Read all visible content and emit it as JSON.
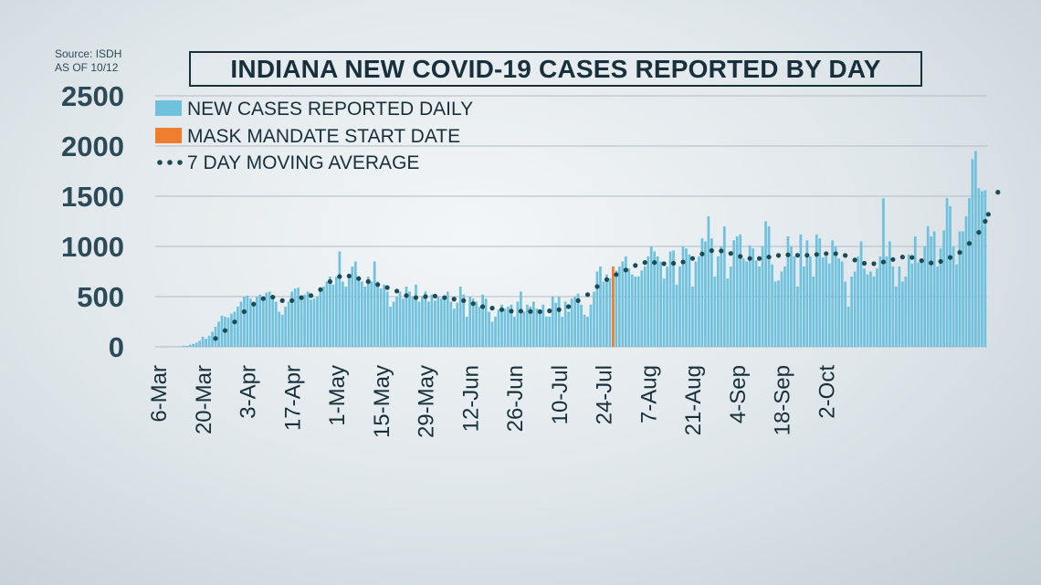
{
  "source_text": [
    "Source: ISDH",
    "AS OF 10/12"
  ],
  "colors": {
    "bars": "#6fc1dd",
    "mask_bar": "#f07d2e",
    "moving_avg": "#1c4a55",
    "grid": "#b0bcc3",
    "text": "#17303b"
  },
  "chart_data": {
    "type": "bar",
    "title": "INDIANA NEW COVID-19 CASES REPORTED BY DAY",
    "xlabel": "",
    "ylabel": "",
    "ylim": [
      0,
      2500
    ],
    "yticks": [
      0,
      500,
      1000,
      1500,
      2000,
      2500
    ],
    "grid": true,
    "legend_position": "top-left",
    "legend": [
      {
        "label": "NEW CASES REPORTED DAILY",
        "type": "bar",
        "color": "#6fc1dd"
      },
      {
        "label": "MASK MANDATE START DATE",
        "type": "bar",
        "color": "#f07d2e"
      },
      {
        "label": "7 DAY MOVING AVERAGE",
        "type": "dots",
        "color": "#1c4a55"
      }
    ],
    "x_start_date": "2020-03-06",
    "x_tick_labels": [
      "6-Mar",
      "20-Mar",
      "3-Apr",
      "17-Apr",
      "1-May",
      "15-May",
      "29-May",
      "12-Jun",
      "26-Jun",
      "10-Jul",
      "24-Jul",
      "7-Aug",
      "21-Aug",
      "4-Sep",
      "18-Sep",
      "2-Oct"
    ],
    "mask_mandate_date": "2020-07-27",
    "mask_mandate_value": 800,
    "series": [
      {
        "name": "NEW CASES REPORTED DAILY",
        "values": [
          0,
          0,
          1,
          4,
          2,
          3,
          2,
          5,
          10,
          10,
          20,
          30,
          40,
          60,
          100,
          80,
          110,
          150,
          200,
          250,
          310,
          300,
          290,
          330,
          350,
          400,
          450,
          500,
          510,
          480,
          450,
          500,
          520,
          480,
          540,
          550,
          500,
          450,
          350,
          320,
          400,
          450,
          550,
          580,
          590,
          500,
          520,
          550,
          470,
          480,
          500,
          550,
          600,
          650,
          700,
          620,
          700,
          950,
          650,
          600,
          700,
          800,
          850,
          700,
          650,
          600,
          700,
          650,
          850,
          650,
          580,
          620,
          550,
          400,
          450,
          500,
          550,
          480,
          600,
          550,
          500,
          620,
          450,
          500,
          550,
          450,
          520,
          460,
          500,
          480,
          500,
          550,
          450,
          380,
          440,
          600,
          520,
          300,
          500,
          480,
          450,
          400,
          520,
          480,
          350,
          250,
          300,
          370,
          420,
          380,
          400,
          420,
          300,
          450,
          550,
          350,
          420,
          400,
          450,
          380,
          350,
          420,
          300,
          300,
          500,
          440,
          500,
          300,
          450,
          350,
          480,
          500,
          530,
          420,
          320,
          300,
          420,
          550,
          750,
          800,
          650,
          720,
          680,
          700,
          760,
          800,
          850,
          900,
          780,
          720,
          700,
          700,
          760,
          800,
          900,
          1000,
          950,
          900,
          850,
          680,
          800,
          950,
          960,
          620,
          800,
          1000,
          980,
          920,
          600,
          850,
          900,
          1080,
          1050,
          1300,
          1080,
          700,
          900,
          1000,
          1200,
          680,
          800,
          1060,
          1100,
          1120,
          880,
          850,
          1010,
          980,
          860,
          800,
          1000,
          1250,
          1200,
          820,
          650,
          660,
          750,
          800,
          1100,
          1000,
          900,
          600,
          1120,
          800,
          1060,
          900,
          700,
          1120,
          1080,
          890,
          900,
          830,
          1060,
          1000,
          880,
          850,
          650,
          400,
          700,
          750,
          900,
          1050,
          780,
          720,
          750,
          700,
          780,
          900,
          1480,
          900,
          1050,
          800,
          600,
          800,
          650,
          700,
          920,
          830,
          1100,
          840,
          850,
          1000,
          1200,
          1100,
          1150,
          800,
          980,
          1160,
          1480,
          1400,
          1000,
          820,
          1150,
          1150,
          1300,
          1480,
          1870,
          1950,
          1580,
          1550,
          1560
        ]
      },
      {
        "name": "7 DAY MOVING AVERAGE",
        "values": [
          0,
          0,
          1,
          2,
          2,
          2,
          2,
          3,
          4,
          5,
          8,
          11,
          15,
          22,
          33,
          40,
          52,
          64,
          83,
          104,
          130,
          162,
          196,
          223,
          248,
          280,
          315,
          350,
          380,
          405,
          425,
          445,
          465,
          480,
          490,
          500,
          495,
          485,
          470,
          460,
          455,
          455,
          460,
          470,
          480,
          490,
          495,
          500,
          510,
          520,
          540,
          570,
          600,
          630,
          650,
          660,
          680,
          700,
          710,
          710,
          705,
          700,
          690,
          680,
          670,
          660,
          650,
          640,
          630,
          620,
          610,
          600,
          590,
          580,
          570,
          555,
          540,
          525,
          510,
          500,
          495,
          490,
          490,
          495,
          500,
          505,
          510,
          505,
          500,
          495,
          490,
          485,
          480,
          475,
          470,
          465,
          460,
          450,
          440,
          430,
          420,
          410,
          400,
          395,
          390,
          385,
          380,
          375,
          370,
          365,
          360,
          355,
          355,
          355,
          355,
          355,
          355,
          352,
          350,
          350,
          350,
          352,
          355,
          358,
          360,
          365,
          370,
          380,
          390,
          400,
          420,
          440,
          460,
          480,
          500,
          520,
          545,
          570,
          600,
          625,
          650,
          670,
          690,
          705,
          720,
          735,
          750,
          765,
          780,
          795,
          810,
          820,
          830,
          840,
          845,
          845,
          840,
          835,
          830,
          828,
          828,
          830,
          832,
          835,
          840,
          845,
          855,
          865,
          880,
          895,
          910,
          925,
          940,
          950,
          958,
          960,
          960,
          955,
          948,
          940,
          930,
          920,
          910,
          900,
          892,
          885,
          880,
          878,
          878,
          880,
          885,
          890,
          895,
          900,
          905,
          910,
          913,
          915,
          916,
          915,
          914,
          912,
          910,
          910,
          912,
          915,
          918,
          920,
          922,
          925,
          928,
          930,
          930,
          928,
          925,
          920,
          910,
          895,
          880,
          865,
          850,
          840,
          832,
          828,
          826,
          828,
          832,
          838,
          845,
          852,
          860,
          870,
          880,
          888,
          894,
          896,
          896,
          890,
          880,
          868,
          858,
          848,
          840,
          835,
          835,
          840,
          850,
          862,
          876,
          890,
          905,
          920,
          940,
          965,
          995,
          1030,
          1065,
          1100,
          1140,
          1190,
          1250,
          1320,
          1400,
          1480,
          1540,
          1560
        ]
      }
    ]
  }
}
